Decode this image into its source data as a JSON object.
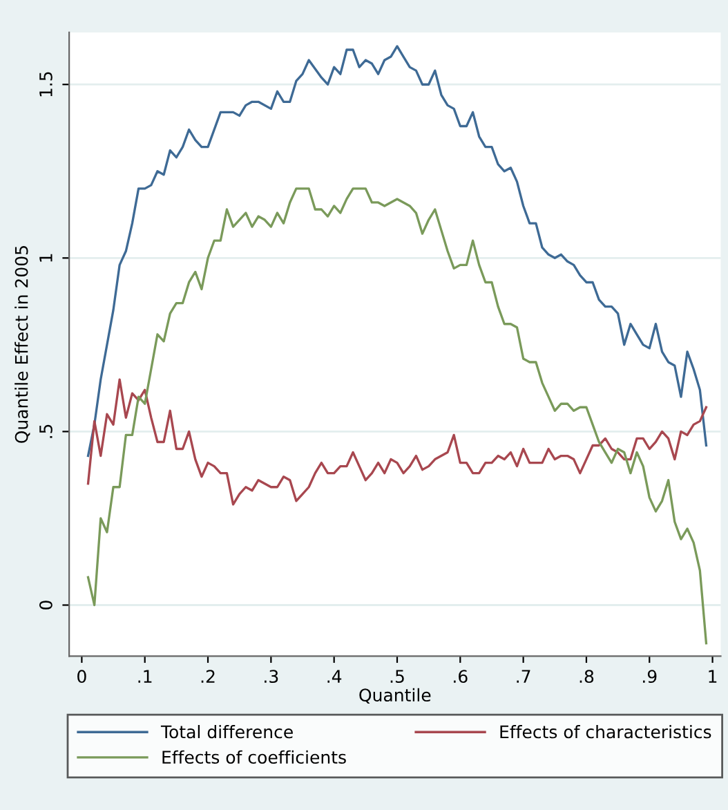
{
  "chart_data": {
    "type": "line",
    "xlabel": "Quantile",
    "ylabel": "Quantile Effect in 2005",
    "xlim": [
      -0.02,
      1.013
    ],
    "ylim": [
      -0.147,
      1.65
    ],
    "xticks": [
      0,
      {
        "value": 0.1,
        "label": ".1"
      },
      {
        "value": 0.2,
        "label": ".2"
      },
      {
        "value": 0.3,
        "label": ".3"
      },
      {
        "value": 0.4,
        "label": ".4"
      },
      {
        "value": 0.5,
        "label": ".5"
      },
      {
        "value": 0.6,
        "label": ".6"
      },
      {
        "value": 0.7,
        "label": ".7"
      },
      {
        "value": 0.8,
        "label": ".8"
      },
      {
        "value": 0.9,
        "label": ".9"
      },
      1
    ],
    "yticks": [
      0,
      {
        "value": 0.5,
        "label": ".5"
      },
      1,
      1.5
    ],
    "grid": "y",
    "legend": "bottom",
    "line_style": "solid",
    "marker": "none",
    "series": [
      {
        "name": "Total difference",
        "color": "#3e6a95",
        "x": [
          0.01,
          0.02,
          0.03,
          0.05,
          0.06,
          0.07,
          0.08,
          0.09,
          0.1,
          0.11,
          0.12,
          0.13,
          0.14,
          0.15,
          0.16,
          0.17,
          0.18,
          0.19,
          0.2,
          0.22,
          0.24,
          0.25,
          0.26,
          0.27,
          0.28,
          0.3,
          0.31,
          0.32,
          0.33,
          0.34,
          0.35,
          0.36,
          0.38,
          0.39,
          0.4,
          0.41,
          0.42,
          0.43,
          0.44,
          0.45,
          0.46,
          0.47,
          0.48,
          0.49,
          0.5,
          0.51,
          0.52,
          0.53,
          0.54,
          0.55,
          0.56,
          0.57,
          0.58,
          0.59,
          0.6,
          0.61,
          0.62,
          0.63,
          0.64,
          0.65,
          0.66,
          0.67,
          0.68,
          0.69,
          0.7,
          0.71,
          0.72,
          0.73,
          0.74,
          0.75,
          0.76,
          0.77,
          0.78,
          0.79,
          0.8,
          0.81,
          0.82,
          0.83,
          0.84,
          0.85,
          0.86,
          0.87,
          0.88,
          0.89,
          0.9,
          0.91,
          0.92,
          0.93,
          0.94,
          0.95,
          0.96,
          0.97,
          0.98,
          0.99
        ],
        "values": [
          0.43,
          0.52,
          0.65,
          0.85,
          0.98,
          1.02,
          1.1,
          1.2,
          1.2,
          1.21,
          1.25,
          1.24,
          1.31,
          1.29,
          1.32,
          1.37,
          1.34,
          1.32,
          1.32,
          1.42,
          1.42,
          1.41,
          1.44,
          1.45,
          1.45,
          1.43,
          1.48,
          1.45,
          1.45,
          1.51,
          1.53,
          1.57,
          1.52,
          1.5,
          1.55,
          1.53,
          1.6,
          1.6,
          1.55,
          1.57,
          1.56,
          1.53,
          1.57,
          1.58,
          1.61,
          1.58,
          1.55,
          1.54,
          1.5,
          1.5,
          1.54,
          1.47,
          1.44,
          1.43,
          1.38,
          1.38,
          1.42,
          1.35,
          1.32,
          1.32,
          1.27,
          1.25,
          1.26,
          1.22,
          1.15,
          1.1,
          1.1,
          1.03,
          1.01,
          1.0,
          1.01,
          0.99,
          0.98,
          0.95,
          0.93,
          0.93,
          0.88,
          0.86,
          0.86,
          0.84,
          0.75,
          0.81,
          0.78,
          0.75,
          0.74,
          0.81,
          0.73,
          0.7,
          0.69,
          0.6,
          0.73,
          0.68,
          0.62,
          0.46
        ]
      },
      {
        "name": "Effects of characteristics",
        "color": "#a8474f",
        "x": [
          0.01,
          0.02,
          0.03,
          0.04,
          0.05,
          0.06,
          0.07,
          0.08,
          0.09,
          0.1,
          0.11,
          0.12,
          0.13,
          0.14,
          0.15,
          0.16,
          0.17,
          0.18,
          0.19,
          0.2,
          0.21,
          0.22,
          0.23,
          0.24,
          0.25,
          0.26,
          0.27,
          0.28,
          0.29,
          0.3,
          0.31,
          0.32,
          0.33,
          0.34,
          0.35,
          0.36,
          0.37,
          0.38,
          0.39,
          0.4,
          0.41,
          0.42,
          0.43,
          0.44,
          0.45,
          0.46,
          0.47,
          0.48,
          0.49,
          0.5,
          0.51,
          0.52,
          0.53,
          0.54,
          0.55,
          0.56,
          0.57,
          0.58,
          0.59,
          0.6,
          0.61,
          0.62,
          0.63,
          0.64,
          0.65,
          0.66,
          0.67,
          0.68,
          0.69,
          0.7,
          0.71,
          0.72,
          0.73,
          0.74,
          0.75,
          0.76,
          0.77,
          0.78,
          0.79,
          0.8,
          0.81,
          0.82,
          0.83,
          0.84,
          0.85,
          0.86,
          0.87,
          0.88,
          0.89,
          0.9,
          0.91,
          0.92,
          0.93,
          0.94,
          0.95,
          0.96,
          0.97,
          0.98,
          0.99
        ],
        "values": [
          0.35,
          0.53,
          0.43,
          0.55,
          0.52,
          0.65,
          0.54,
          0.61,
          0.59,
          0.62,
          0.54,
          0.47,
          0.47,
          0.56,
          0.45,
          0.45,
          0.5,
          0.42,
          0.37,
          0.41,
          0.4,
          0.38,
          0.38,
          0.29,
          0.32,
          0.34,
          0.33,
          0.36,
          0.35,
          0.34,
          0.34,
          0.37,
          0.36,
          0.3,
          0.32,
          0.34,
          0.38,
          0.41,
          0.38,
          0.38,
          0.4,
          0.4,
          0.44,
          0.4,
          0.36,
          0.38,
          0.41,
          0.38,
          0.42,
          0.41,
          0.38,
          0.4,
          0.43,
          0.39,
          0.4,
          0.42,
          0.43,
          0.44,
          0.49,
          0.41,
          0.41,
          0.38,
          0.38,
          0.41,
          0.41,
          0.43,
          0.42,
          0.44,
          0.4,
          0.45,
          0.41,
          0.41,
          0.41,
          0.45,
          0.42,
          0.43,
          0.43,
          0.42,
          0.38,
          0.42,
          0.46,
          0.46,
          0.48,
          0.45,
          0.44,
          0.42,
          0.42,
          0.48,
          0.48,
          0.45,
          0.47,
          0.5,
          0.48,
          0.42,
          0.5,
          0.49,
          0.52,
          0.53,
          0.57
        ]
      },
      {
        "name": "Effects of coefficients",
        "color": "#7a9a5a",
        "x": [
          0.01,
          0.02,
          0.03,
          0.04,
          0.05,
          0.06,
          0.07,
          0.08,
          0.09,
          0.1,
          0.11,
          0.12,
          0.13,
          0.14,
          0.15,
          0.16,
          0.17,
          0.18,
          0.19,
          0.2,
          0.21,
          0.22,
          0.23,
          0.24,
          0.25,
          0.26,
          0.27,
          0.28,
          0.29,
          0.3,
          0.31,
          0.32,
          0.33,
          0.34,
          0.35,
          0.36,
          0.37,
          0.38,
          0.39,
          0.4,
          0.41,
          0.42,
          0.43,
          0.44,
          0.45,
          0.46,
          0.47,
          0.48,
          0.49,
          0.5,
          0.51,
          0.52,
          0.53,
          0.54,
          0.55,
          0.56,
          0.57,
          0.58,
          0.59,
          0.6,
          0.61,
          0.62,
          0.63,
          0.64,
          0.65,
          0.66,
          0.67,
          0.68,
          0.69,
          0.7,
          0.71,
          0.72,
          0.73,
          0.74,
          0.75,
          0.76,
          0.77,
          0.78,
          0.79,
          0.8,
          0.81,
          0.82,
          0.83,
          0.84,
          0.85,
          0.86,
          0.87,
          0.88,
          0.89,
          0.9,
          0.91,
          0.92,
          0.93,
          0.94,
          0.95,
          0.96,
          0.97,
          0.98,
          0.99
        ],
        "values": [
          0.08,
          0.0,
          0.25,
          0.21,
          0.34,
          0.34,
          0.49,
          0.49,
          0.6,
          0.58,
          0.68,
          0.78,
          0.76,
          0.84,
          0.87,
          0.87,
          0.93,
          0.96,
          0.91,
          1.0,
          1.05,
          1.05,
          1.14,
          1.09,
          1.11,
          1.13,
          1.09,
          1.12,
          1.11,
          1.09,
          1.13,
          1.1,
          1.16,
          1.2,
          1.2,
          1.2,
          1.14,
          1.14,
          1.12,
          1.15,
          1.13,
          1.17,
          1.2,
          1.2,
          1.2,
          1.16,
          1.16,
          1.15,
          1.16,
          1.17,
          1.16,
          1.15,
          1.13,
          1.07,
          1.11,
          1.14,
          1.08,
          1.02,
          0.97,
          0.98,
          0.98,
          1.05,
          0.98,
          0.93,
          0.93,
          0.86,
          0.81,
          0.81,
          0.8,
          0.71,
          0.7,
          0.7,
          0.64,
          0.6,
          0.56,
          0.58,
          0.58,
          0.56,
          0.57,
          0.57,
          0.52,
          0.47,
          0.44,
          0.41,
          0.45,
          0.44,
          0.38,
          0.44,
          0.4,
          0.31,
          0.27,
          0.3,
          0.36,
          0.24,
          0.19,
          0.22,
          0.18,
          0.1,
          -0.11
        ]
      }
    ]
  }
}
